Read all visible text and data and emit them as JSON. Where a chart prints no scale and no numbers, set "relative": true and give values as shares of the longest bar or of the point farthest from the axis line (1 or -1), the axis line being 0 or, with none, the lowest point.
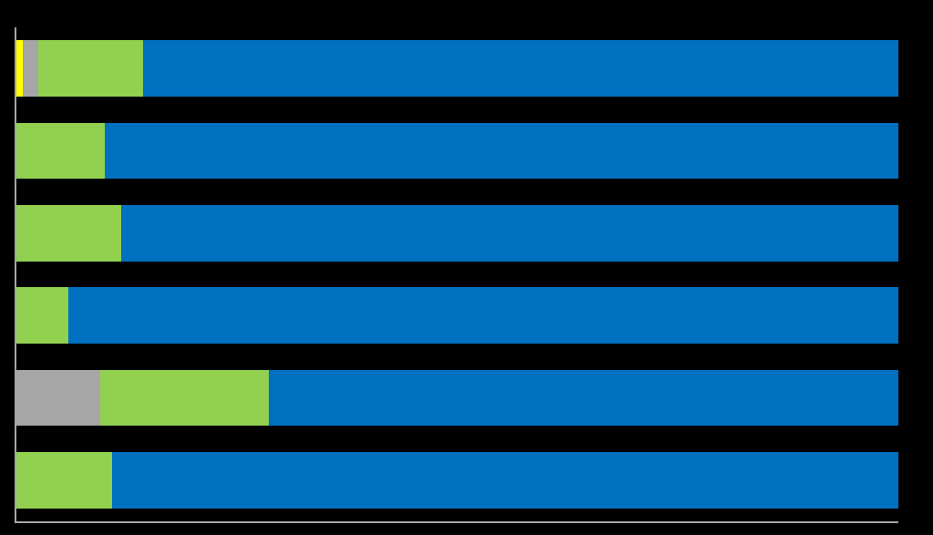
{
  "chart_data": {
    "type": "bar",
    "orientation": "horizontal",
    "stacked": true,
    "relative": true,
    "grid": false,
    "categories": [
      null,
      null,
      null,
      null,
      null,
      null
    ],
    "series": [
      {
        "color": "#ffff00",
        "values": [
          0.007,
          0,
          0,
          0,
          0,
          0
        ]
      },
      {
        "color": "#a6a6a6",
        "values": [
          0.018,
          0,
          0,
          0,
          0.095,
          0
        ]
      },
      {
        "color": "#92d050",
        "values": [
          0.119,
          0.1,
          0.119,
          0.059,
          0.191,
          0.108
        ]
      },
      {
        "color": "#0070c0",
        "values": [
          0.856,
          0.9,
          0.881,
          0.941,
          0.714,
          0.892
        ]
      }
    ]
  }
}
